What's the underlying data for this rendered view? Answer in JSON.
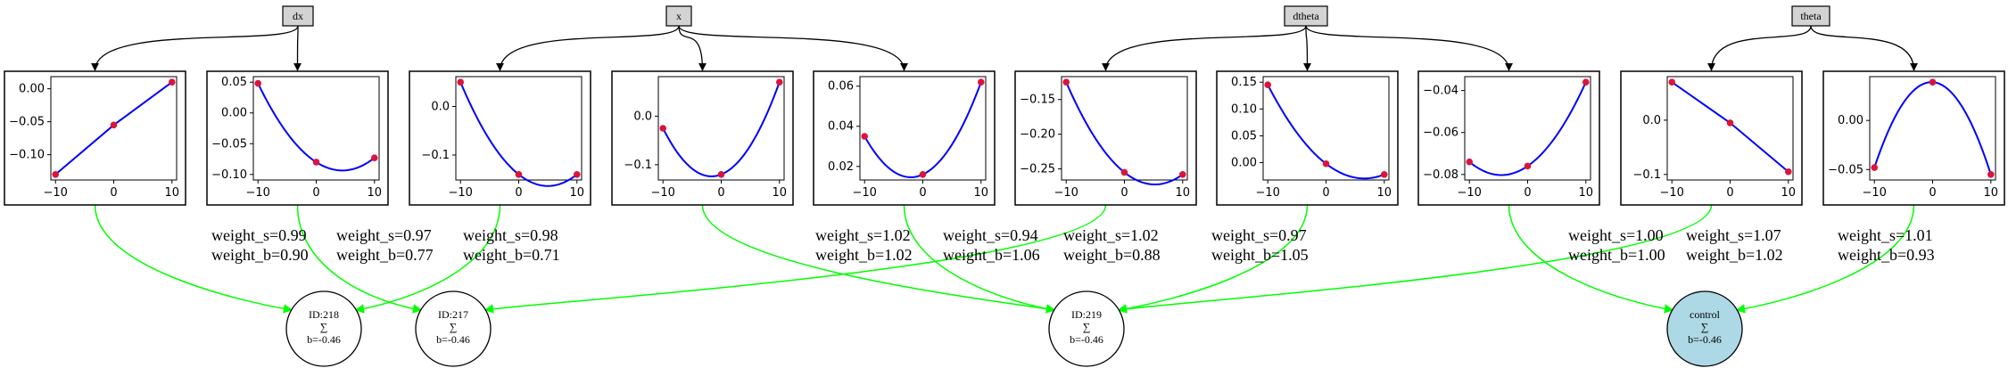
{
  "inputs": [
    {
      "id": "dx",
      "label": "dx"
    },
    {
      "id": "x",
      "label": "x"
    },
    {
      "id": "dtheta",
      "label": "dtheta"
    },
    {
      "id": "theta",
      "label": "theta"
    }
  ],
  "nodes": [
    {
      "id": "n218",
      "label": "ID:218",
      "sum": "∑",
      "bias": "b=-0.46",
      "fill": "#ffffff"
    },
    {
      "id": "n217",
      "label": "ID:217",
      "sum": "∑",
      "bias": "b=-0.46",
      "fill": "#ffffff"
    },
    {
      "id": "n219",
      "label": "ID:219",
      "sum": "∑",
      "bias": "b=-0.46",
      "fill": "#ffffff"
    },
    {
      "id": "control",
      "label": "control",
      "sum": "∑",
      "bias": "b=-0.46",
      "fill": "#add8e6"
    }
  ],
  "colors": {
    "edge_input": "#000000",
    "edge_output": "#00ff00",
    "curve": "#0000ff",
    "point": "#dc143c",
    "input_fill": "#d3d3d3"
  },
  "chart_data": [
    {
      "type": "line",
      "from": "dx",
      "to": "n218",
      "x": [
        -10,
        0,
        10
      ],
      "y": [
        -0.13,
        -0.055,
        0.01
      ],
      "curve": "linear",
      "xticks": [
        "−10",
        "0",
        "10"
      ],
      "yticks": [
        "0.00",
        "−0.05",
        "−0.10"
      ],
      "weight_s": "weight_s=0.99",
      "weight_b": "weight_b=0.90"
    },
    {
      "type": "line",
      "from": "dx",
      "to": "n217",
      "x": [
        -10,
        0,
        10
      ],
      "y": [
        0.048,
        -0.08,
        -0.073
      ],
      "curve": "quadratic",
      "xticks": [
        "−10",
        "0",
        "10"
      ],
      "yticks": [
        "0.05",
        "0.00",
        "−0.05",
        "−0.10"
      ],
      "weight_s": "weight_s=0.97",
      "weight_b": "weight_b=0.77"
    },
    {
      "type": "line",
      "from": "x",
      "to": "n218",
      "x": [
        -10,
        0,
        10
      ],
      "y": [
        0.05,
        -0.14,
        -0.14
      ],
      "curve": "quadratic",
      "xticks": [
        "−10",
        "0",
        "10"
      ],
      "yticks": [
        "0.0",
        "−0.1"
      ],
      "weight_s": "weight_s=0.98",
      "weight_b": "weight_b=0.71"
    },
    {
      "type": "line",
      "from": "x",
      "to": "n219",
      "x": [
        -10,
        0,
        10
      ],
      "y": [
        -0.025,
        -0.12,
        0.07
      ],
      "curve": "quadratic",
      "xticks": [
        "−10",
        "0",
        "10"
      ],
      "yticks": [
        "0.0",
        "−0.1"
      ],
      "weight_s": "weight_s=1.02",
      "weight_b": "weight_b=1.02"
    },
    {
      "type": "line",
      "from": "x",
      "to": "n219",
      "x": [
        -10,
        0,
        10
      ],
      "y": [
        0.035,
        0.016,
        0.062
      ],
      "curve": "quadratic",
      "xticks": [
        "−10",
        "0",
        "10"
      ],
      "yticks": [
        "0.06",
        "0.04",
        "0.02"
      ],
      "weight_s": "weight_s=0.94",
      "weight_b": "weight_b=1.06"
    },
    {
      "type": "line",
      "from": "dtheta",
      "to": "n217",
      "x": [
        -10,
        0,
        10
      ],
      "y": [
        -0.125,
        -0.255,
        -0.258
      ],
      "curve": "quadratic",
      "xticks": [
        "−10",
        "0",
        "10"
      ],
      "yticks": [
        "−0.15",
        "−0.20",
        "−0.25"
      ],
      "weight_s": "weight_s=1.02",
      "weight_b": "weight_b=0.88"
    },
    {
      "type": "line",
      "from": "dtheta",
      "to": "n219",
      "x": [
        -10,
        0,
        10
      ],
      "y": [
        0.145,
        -0.002,
        -0.022
      ],
      "curve": "quadratic",
      "xticks": [
        "−10",
        "0",
        "10"
      ],
      "yticks": [
        "0.15",
        "0.10",
        "0.05",
        "0.00"
      ],
      "weight_s": "weight_s=0.97",
      "weight_b": "weight_b=1.05"
    },
    {
      "type": "line",
      "from": "dtheta",
      "to": "control",
      "x": [
        -10,
        0,
        10
      ],
      "y": [
        -0.074,
        -0.076,
        -0.036
      ],
      "curve": "quadratic",
      "xticks": [
        "−10",
        "0",
        "10"
      ],
      "yticks": [
        "−0.04",
        "−0.06",
        "−0.08"
      ],
      "weight_s": "weight_s=1.00",
      "weight_b": "weight_b=1.00"
    },
    {
      "type": "line",
      "from": "theta",
      "to": "n219",
      "x": [
        -10,
        0,
        10
      ],
      "y": [
        0.07,
        -0.005,
        -0.095
      ],
      "curve": "linear",
      "xticks": [
        "−10",
        "0",
        "10"
      ],
      "yticks": [
        "0.0",
        "−0.1"
      ],
      "weight_s": "weight_s=1.07",
      "weight_b": "weight_b=1.02"
    },
    {
      "type": "line",
      "from": "theta",
      "to": "control",
      "x": [
        -10,
        0,
        10
      ],
      "y": [
        -0.048,
        0.039,
        -0.055
      ],
      "curve": "quadratic",
      "xticks": [
        "−10",
        "0",
        "10"
      ],
      "yticks": [
        "0.00",
        "−0.05"
      ],
      "weight_s": "weight_s=1.01",
      "weight_b": "weight_b=0.93"
    }
  ]
}
